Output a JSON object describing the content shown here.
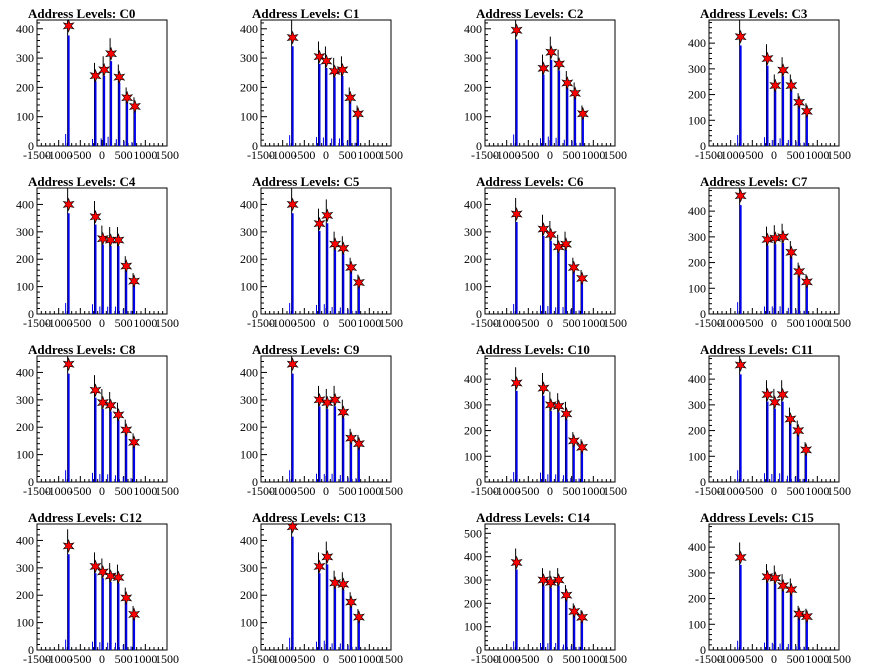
{
  "chart_data": [
    {
      "type": "bar",
      "title": "Address Levels: C0",
      "xlim": [
        -1500,
        1500
      ],
      "ylim": [
        0,
        430
      ],
      "yticks": [
        0,
        100,
        200,
        300,
        400
      ],
      "xticks": [
        -1500,
        -1000,
        -500,
        0,
        500,
        1000,
        1500
      ],
      "x": [
        -770,
        -150,
        50,
        210,
        400,
        580,
        760
      ],
      "values": [
        410,
        240,
        260,
        315,
        235,
        165,
        135
      ]
    },
    {
      "type": "bar",
      "title": "Address Levels: C1",
      "xlim": [
        -1500,
        1500
      ],
      "ylim": [
        0,
        430
      ],
      "yticks": [
        0,
        100,
        200,
        300,
        400
      ],
      "xticks": [
        -1500,
        -1000,
        -500,
        0,
        500,
        1000,
        1500
      ],
      "x": [
        -770,
        -150,
        10,
        200,
        380,
        560,
        740
      ],
      "values": [
        370,
        305,
        290,
        255,
        260,
        165,
        110
      ]
    },
    {
      "type": "bar",
      "title": "Address Levels: C2",
      "xlim": [
        -1500,
        1500
      ],
      "ylim": [
        0,
        430
      ],
      "yticks": [
        0,
        100,
        200,
        300,
        400
      ],
      "xticks": [
        -1500,
        -1000,
        -500,
        0,
        500,
        1000,
        1500
      ],
      "x": [
        -770,
        -150,
        30,
        210,
        400,
        580,
        760
      ],
      "values": [
        395,
        265,
        320,
        280,
        215,
        180,
        110
      ]
    },
    {
      "type": "bar",
      "title": "Address Levels: C3",
      "xlim": [
        -1500,
        1500
      ],
      "ylim": [
        0,
        490
      ],
      "yticks": [
        0,
        100,
        200,
        300,
        400
      ],
      "xticks": [
        -1500,
        -1000,
        -500,
        0,
        500,
        1000,
        1500
      ],
      "x": [
        -770,
        -150,
        30,
        210,
        400,
        580,
        760
      ],
      "values": [
        425,
        340,
        235,
        295,
        235,
        170,
        135
      ]
    },
    {
      "type": "bar",
      "title": "Address Levels: C4",
      "xlim": [
        -1500,
        1500
      ],
      "ylim": [
        0,
        460
      ],
      "yticks": [
        0,
        100,
        200,
        300,
        400
      ],
      "xticks": [
        -1500,
        -1000,
        -500,
        0,
        500,
        1000,
        1500
      ],
      "x": [
        -770,
        -150,
        20,
        200,
        380,
        560,
        740
      ],
      "values": [
        400,
        355,
        275,
        270,
        270,
        175,
        120
      ]
    },
    {
      "type": "bar",
      "title": "Address Levels: C5",
      "xlim": [
        -1500,
        1500
      ],
      "ylim": [
        0,
        460
      ],
      "yticks": [
        0,
        100,
        200,
        300,
        400
      ],
      "xticks": [
        -1500,
        -1000,
        -500,
        0,
        500,
        1000,
        1500
      ],
      "x": [
        -770,
        -150,
        30,
        210,
        400,
        580,
        760
      ],
      "values": [
        400,
        330,
        360,
        255,
        240,
        170,
        115
      ]
    },
    {
      "type": "bar",
      "title": "Address Levels: C6",
      "xlim": [
        -1500,
        1500
      ],
      "ylim": [
        0,
        460
      ],
      "yticks": [
        0,
        100,
        200,
        300,
        400
      ],
      "xticks": [
        -1500,
        -1000,
        -500,
        0,
        500,
        1000,
        1500
      ],
      "x": [
        -770,
        -150,
        20,
        200,
        370,
        550,
        740
      ],
      "values": [
        365,
        310,
        290,
        245,
        255,
        170,
        130
      ]
    },
    {
      "type": "bar",
      "title": "Address Levels: C7",
      "xlim": [
        -1500,
        1500
      ],
      "ylim": [
        0,
        490
      ],
      "yticks": [
        0,
        100,
        200,
        300,
        400
      ],
      "xticks": [
        -1500,
        -1000,
        -500,
        0,
        500,
        1000,
        1500
      ],
      "x": [
        -770,
        -150,
        30,
        210,
        400,
        580,
        760
      ],
      "values": [
        460,
        290,
        295,
        300,
        240,
        165,
        125
      ]
    },
    {
      "type": "bar",
      "title": "Address Levels: C8",
      "xlim": [
        -1500,
        1500
      ],
      "ylim": [
        0,
        460
      ],
      "yticks": [
        0,
        100,
        200,
        300,
        400
      ],
      "xticks": [
        -1500,
        -1000,
        -500,
        0,
        500,
        1000,
        1500
      ],
      "x": [
        -770,
        -150,
        20,
        200,
        380,
        560,
        740
      ],
      "values": [
        430,
        335,
        290,
        280,
        245,
        190,
        145
      ]
    },
    {
      "type": "bar",
      "title": "Address Levels: C9",
      "xlim": [
        -1500,
        1500
      ],
      "ylim": [
        0,
        460
      ],
      "yticks": [
        0,
        100,
        200,
        300,
        400
      ],
      "xticks": [
        -1500,
        -1000,
        -500,
        0,
        500,
        1000,
        1500
      ],
      "x": [
        -770,
        -150,
        30,
        210,
        400,
        580,
        760
      ],
      "values": [
        430,
        300,
        290,
        300,
        255,
        160,
        140
      ]
    },
    {
      "type": "bar",
      "title": "Address Levels: C10",
      "xlim": [
        -1500,
        1500
      ],
      "ylim": [
        0,
        490
      ],
      "yticks": [
        0,
        100,
        200,
        300,
        400
      ],
      "xticks": [
        -1500,
        -1000,
        -500,
        0,
        500,
        1000,
        1500
      ],
      "x": [
        -770,
        -150,
        20,
        200,
        380,
        550,
        740
      ],
      "values": [
        385,
        365,
        300,
        295,
        265,
        160,
        135
      ]
    },
    {
      "type": "bar",
      "title": "Address Levels: C11",
      "xlim": [
        -1500,
        1500
      ],
      "ylim": [
        0,
        490
      ],
      "yticks": [
        0,
        100,
        200,
        300,
        400
      ],
      "xticks": [
        -1500,
        -1000,
        -500,
        0,
        500,
        1000,
        1500
      ],
      "x": [
        -770,
        -150,
        20,
        200,
        380,
        560,
        740
      ],
      "values": [
        455,
        340,
        310,
        340,
        245,
        200,
        125
      ]
    },
    {
      "type": "bar",
      "title": "Address Levels: C12",
      "xlim": [
        -1500,
        1500
      ],
      "ylim": [
        0,
        460
      ],
      "yticks": [
        0,
        100,
        200,
        300,
        400
      ],
      "xticks": [
        -1500,
        -1000,
        -500,
        0,
        500,
        1000,
        1500
      ],
      "x": [
        -770,
        -150,
        20,
        200,
        380,
        560,
        740
      ],
      "values": [
        380,
        305,
        285,
        270,
        265,
        190,
        130
      ]
    },
    {
      "type": "bar",
      "title": "Address Levels: C13",
      "xlim": [
        -1500,
        1500
      ],
      "ylim": [
        0,
        460
      ],
      "yticks": [
        0,
        100,
        200,
        300,
        400
      ],
      "xticks": [
        -1500,
        -1000,
        -500,
        0,
        500,
        1000,
        1500
      ],
      "x": [
        -770,
        -150,
        30,
        210,
        400,
        580,
        760
      ],
      "values": [
        450,
        305,
        340,
        245,
        240,
        175,
        120
      ]
    },
    {
      "type": "bar",
      "title": "Address Levels: C14",
      "xlim": [
        -1500,
        1500
      ],
      "ylim": [
        0,
        540
      ],
      "yticks": [
        0,
        100,
        200,
        300,
        400,
        500
      ],
      "xticks": [
        -1500,
        -1000,
        -500,
        0,
        500,
        1000,
        1500
      ],
      "x": [
        -770,
        -150,
        20,
        200,
        380,
        560,
        740
      ],
      "values": [
        375,
        300,
        290,
        300,
        235,
        165,
        140
      ]
    },
    {
      "type": "bar",
      "title": "Address Levels: C15",
      "xlim": [
        -1500,
        1500
      ],
      "ylim": [
        0,
        490
      ],
      "yticks": [
        0,
        100,
        200,
        300,
        400
      ],
      "xticks": [
        -1500,
        -1000,
        -500,
        0,
        500,
        1000,
        1500
      ],
      "x": [
        -770,
        -150,
        30,
        210,
        400,
        580,
        760
      ],
      "values": [
        360,
        285,
        280,
        250,
        235,
        140,
        130
      ]
    }
  ],
  "colors": {
    "spike": "#0000ee",
    "spike_outline": "#000000",
    "marker": "#ff0000",
    "axis": "#000000"
  }
}
